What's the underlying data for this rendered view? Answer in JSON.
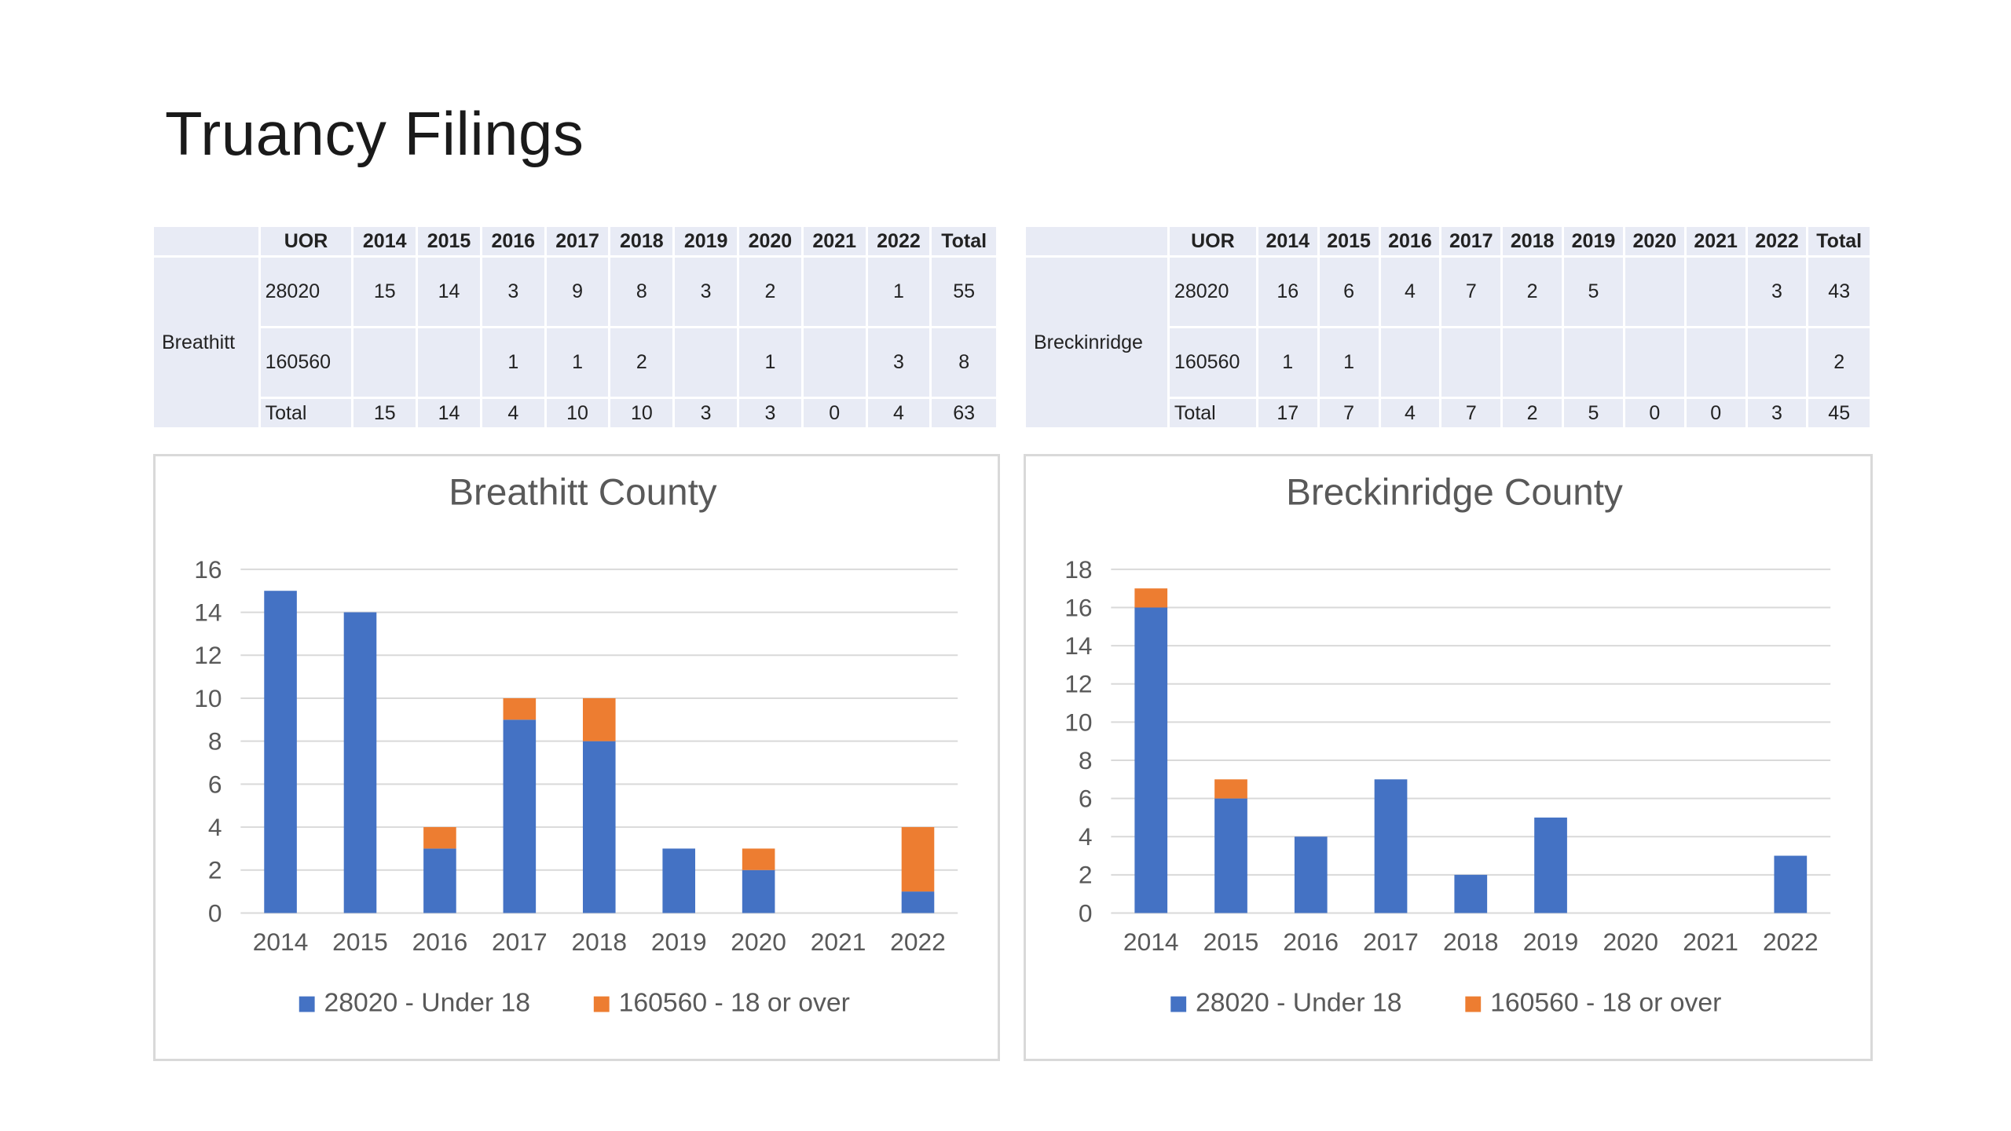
{
  "page": {
    "title": "Truancy Filings"
  },
  "colors": {
    "under18": "#4472c4",
    "over18": "#ed7d31",
    "table_bg": "#e8ebf5"
  },
  "tables": [
    {
      "county": "Breathitt",
      "headers": [
        "UOR",
        "2014",
        "2015",
        "2016",
        "2017",
        "2018",
        "2019",
        "2020",
        "2021",
        "2022",
        "Total"
      ],
      "rows": [
        {
          "uor": "28020",
          "cells": [
            "15",
            "14",
            "3",
            "9",
            "8",
            "3",
            "2",
            "",
            "1",
            "55"
          ]
        },
        {
          "uor": "160560",
          "cells": [
            "",
            "",
            "1",
            "1",
            "2",
            "",
            "1",
            "",
            "3",
            "8"
          ]
        },
        {
          "uor": "Total",
          "cells": [
            "15",
            "14",
            "4",
            "10",
            "10",
            "3",
            "3",
            "0",
            "4",
            "63"
          ]
        }
      ]
    },
    {
      "county": "Breckinridge",
      "headers": [
        "UOR",
        "2014",
        "2015",
        "2016",
        "2017",
        "2018",
        "2019",
        "2020",
        "2021",
        "2022",
        "Total"
      ],
      "rows": [
        {
          "uor": "28020",
          "cells": [
            "16",
            "6",
            "4",
            "7",
            "2",
            "5",
            "",
            "",
            "3",
            "43"
          ]
        },
        {
          "uor": "160560",
          "cells": [
            "1",
            "1",
            "",
            "",
            "",
            "",
            "",
            "",
            "",
            "2"
          ]
        },
        {
          "uor": "Total",
          "cells": [
            "17",
            "7",
            "4",
            "7",
            "2",
            "5",
            "0",
            "0",
            "3",
            "45"
          ]
        }
      ]
    }
  ],
  "chart_data": [
    {
      "type": "bar",
      "stacked": true,
      "title": "Breathitt County",
      "categories": [
        "2014",
        "2015",
        "2016",
        "2017",
        "2018",
        "2019",
        "2020",
        "2021",
        "2022"
      ],
      "series": [
        {
          "name": "28020 - Under 18",
          "values": [
            15,
            14,
            3,
            9,
            8,
            3,
            2,
            0,
            1
          ],
          "color": "#4472c4"
        },
        {
          "name": "160560 - 18 or over",
          "values": [
            0,
            0,
            1,
            1,
            2,
            0,
            1,
            0,
            3
          ],
          "color": "#ed7d31"
        }
      ],
      "ylim": [
        0,
        16
      ],
      "yticks": [
        0,
        2,
        4,
        6,
        8,
        10,
        12,
        14,
        16
      ],
      "grid": true,
      "legend": "bottom"
    },
    {
      "type": "bar",
      "stacked": true,
      "title": "Breckinridge County",
      "categories": [
        "2014",
        "2015",
        "2016",
        "2017",
        "2018",
        "2019",
        "2020",
        "2021",
        "2022"
      ],
      "series": [
        {
          "name": "28020 - Under 18",
          "values": [
            16,
            6,
            4,
            7,
            2,
            5,
            0,
            0,
            3
          ],
          "color": "#4472c4"
        },
        {
          "name": "160560 - 18 or over",
          "values": [
            1,
            1,
            0,
            0,
            0,
            0,
            0,
            0,
            0
          ],
          "color": "#ed7d31"
        }
      ],
      "ylim": [
        0,
        18
      ],
      "yticks": [
        0,
        2,
        4,
        6,
        8,
        10,
        12,
        14,
        16,
        18
      ],
      "grid": true,
      "legend": "bottom"
    }
  ]
}
